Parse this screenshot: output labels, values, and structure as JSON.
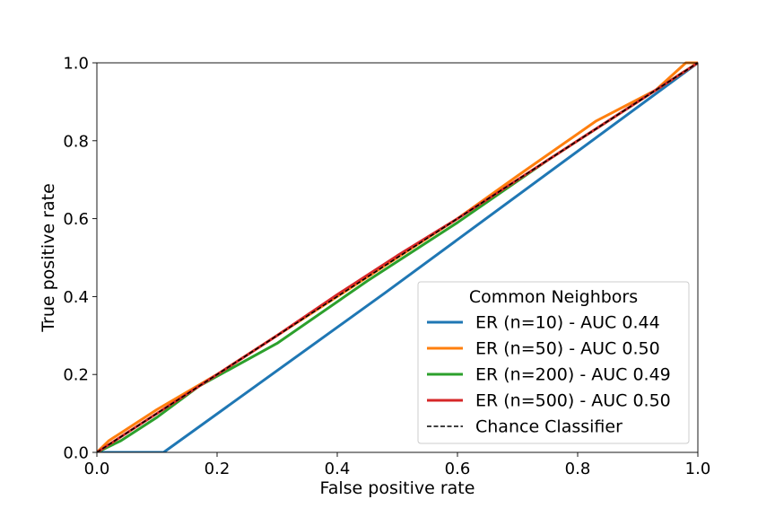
{
  "chart_data": {
    "type": "line",
    "title": "",
    "xlabel": "False positive rate",
    "ylabel": "True positive rate",
    "xlim": [
      0.0,
      1.0
    ],
    "ylim": [
      0.0,
      1.0
    ],
    "xticks": [
      "0.0",
      "0.2",
      "0.4",
      "0.6",
      "0.8",
      "1.0"
    ],
    "yticks": [
      "0.0",
      "0.2",
      "0.4",
      "0.6",
      "0.8",
      "1.0"
    ],
    "grid": false,
    "legend": {
      "title": "Common Neighbors",
      "placement": "lower-right"
    },
    "series": [
      {
        "name": "ER (n=10) - AUC 0.44",
        "color": "#1f77b4",
        "dash": false,
        "x": [
          0.0,
          0.111,
          0.48,
          1.0
        ],
        "y": [
          0.0,
          0.0,
          0.41,
          1.0
        ]
      },
      {
        "name": "ER (n=50) - AUC 0.50",
        "color": "#ff7f0e",
        "dash": false,
        "x": [
          0.0,
          0.02,
          0.05,
          0.1,
          0.2,
          0.3,
          0.4,
          0.5,
          0.6,
          0.7,
          0.83,
          0.93,
          0.98,
          1.0
        ],
        "y": [
          0.0,
          0.03,
          0.06,
          0.11,
          0.2,
          0.3,
          0.4,
          0.5,
          0.6,
          0.71,
          0.85,
          0.93,
          1.0,
          1.0
        ]
      },
      {
        "name": "ER (n=200) - AUC 0.49",
        "color": "#2ca02c",
        "dash": false,
        "x": [
          0.0,
          0.04,
          0.1,
          0.17,
          0.3,
          0.45,
          0.6,
          0.75,
          0.9,
          1.0
        ],
        "y": [
          0.0,
          0.03,
          0.09,
          0.17,
          0.28,
          0.44,
          0.59,
          0.75,
          0.9,
          1.0
        ]
      },
      {
        "name": "ER (n=500) - AUC 0.50",
        "color": "#d62728",
        "dash": false,
        "x": [
          0.0,
          0.05,
          0.12,
          0.2,
          0.3,
          0.4,
          0.5,
          0.6,
          0.7,
          0.8,
          0.9,
          1.0
        ],
        "y": [
          0.0,
          0.05,
          0.12,
          0.2,
          0.3,
          0.405,
          0.505,
          0.6,
          0.7,
          0.8,
          0.9,
          1.0
        ]
      },
      {
        "name": "Chance Classifier",
        "color": "#000000",
        "dash": true,
        "x": [
          0.0,
          1.0
        ],
        "y": [
          0.0,
          1.0
        ]
      }
    ]
  }
}
